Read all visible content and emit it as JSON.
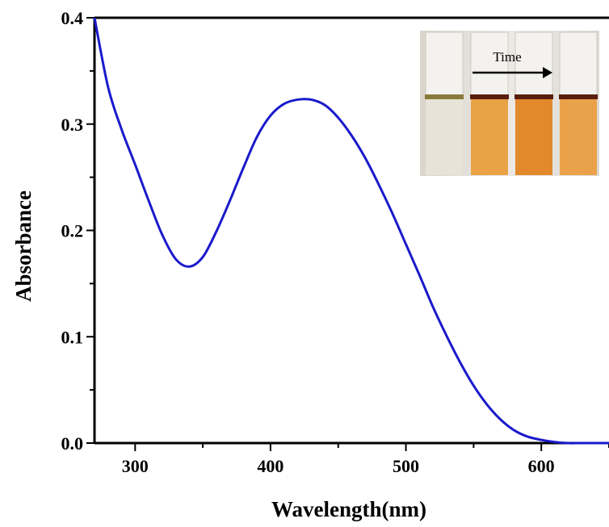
{
  "chart_data": {
    "type": "line",
    "title": "",
    "xlabel": "Wavelength(nm)",
    "ylabel": "Absorbance",
    "xlim": [
      270,
      650
    ],
    "ylim": [
      0.0,
      0.4
    ],
    "xticks": [
      300,
      400,
      500,
      600
    ],
    "xtick_labels": [
      "300",
      "400",
      "500",
      "600"
    ],
    "yticks": [
      0.0,
      0.1,
      0.2,
      0.3,
      0.4
    ],
    "ytick_labels": [
      "0.0",
      "0.1",
      "0.2",
      "0.3",
      "0.4"
    ],
    "grid": false,
    "line_color": "#1a1acc",
    "series": [
      {
        "x": [
          270,
          280,
          290,
          300,
          310,
          320,
          330,
          340,
          350,
          360,
          370,
          380,
          390,
          400,
          410,
          420,
          430,
          440,
          450,
          460,
          470,
          480,
          490,
          500,
          510,
          520,
          530,
          540,
          550,
          560,
          570,
          580,
          590,
          600,
          610,
          620,
          630,
          640,
          650
        ],
        "y": [
          0.4,
          0.335,
          0.295,
          0.262,
          0.228,
          0.196,
          0.173,
          0.166,
          0.175,
          0.199,
          0.228,
          0.259,
          0.288,
          0.308,
          0.319,
          0.323,
          0.323,
          0.318,
          0.306,
          0.289,
          0.268,
          0.243,
          0.216,
          0.187,
          0.158,
          0.128,
          0.101,
          0.076,
          0.054,
          0.036,
          0.022,
          0.012,
          0.006,
          0.003,
          0.001,
          0.0,
          0.0,
          0.0,
          0.0
        ]
      }
    ],
    "inset": {
      "label": "Time",
      "arrow_direction": "right",
      "tube_colors": [
        "#e7e3d6",
        "#e9a246",
        "#e2892b",
        "#e9a24a"
      ]
    }
  }
}
